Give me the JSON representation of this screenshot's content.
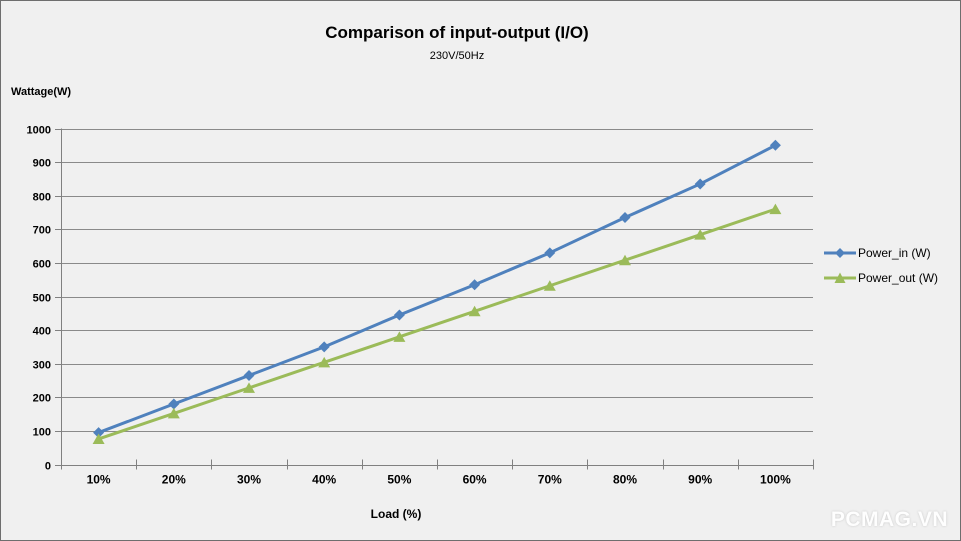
{
  "window": {
    "background_color": "#f0f0f0",
    "border_color": "#6e6e6e"
  },
  "chart": {
    "title": "Comparison of input-output (I/O)",
    "subtitle": "230V/50Hz",
    "y_axis_title": "Wattage(W)",
    "x_axis_title": "Load (%)"
  },
  "watermark": "PCMAG.VN",
  "colors": {
    "power_in": "#4f81bd",
    "power_out": "#9bbb59",
    "gridline": "#8a8a8a",
    "axis": "#808080",
    "tick_label": "#000000"
  },
  "chart_data": {
    "type": "line",
    "title": "Comparison of input-output (I/O)",
    "subtitle": "230V/50Hz",
    "xlabel": "Load (%)",
    "ylabel": "Wattage(W)",
    "categories": [
      "10%",
      "20%",
      "30%",
      "40%",
      "50%",
      "60%",
      "70%",
      "80%",
      "90%",
      "100%"
    ],
    "series": [
      {
        "name": "Power_in (W)",
        "color": "#4f81bd",
        "marker": "diamond",
        "values": [
          95,
          180,
          265,
          350,
          445,
          535,
          630,
          735,
          835,
          950
        ]
      },
      {
        "name": "Power_out (W)",
        "color": "#9bbb59",
        "marker": "triangle",
        "values": [
          76,
          152,
          228,
          304,
          380,
          456,
          532,
          608,
          684,
          760
        ]
      }
    ],
    "ylim": [
      0,
      1000
    ],
    "ytick_step": 100,
    "grid": true,
    "legend_position": "right"
  }
}
